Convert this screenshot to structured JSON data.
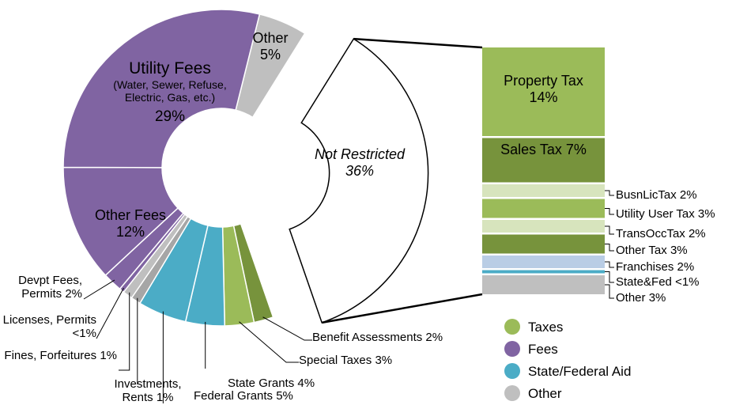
{
  "chart_data": [
    {
      "type": "pie",
      "categories": [
        "Other",
        "Not Restricted",
        "Benefit Assessments",
        "Special Taxes",
        "State Grants",
        "Federal Grants",
        "Investments, Rents",
        "Fines, Forfeitures",
        "Licenses, Permits",
        "Devpt Fees, Permits",
        "Other Fees",
        "Utility Fees"
      ],
      "values": [
        5,
        36,
        2,
        3,
        4,
        5,
        1,
        1,
        0.5,
        2,
        12,
        29
      ],
      "value_labels": [
        "5%",
        "36%",
        "2%",
        "3%",
        "4%",
        "5%",
        "1%",
        "1%",
        "<1%",
        "2%",
        "12%",
        "29%"
      ],
      "colors": [
        "#bfbfbf",
        "#ffffff",
        "#77933c",
        "#9bbb59",
        "#4bacc6",
        "#4bacc6",
        "#a6a6a6",
        "#bfbfbf",
        "#8064a2",
        "#8064a2",
        "#8064a2",
        "#8064a2"
      ],
      "annotation": "(Water, Sewer, Refuse, Electric, Gas, etc.)",
      "legend": [
        {
          "name": "Taxes",
          "color": "#9bbb59"
        },
        {
          "name": "Fees",
          "color": "#8064a2"
        },
        {
          "name": "State/Federal Aid",
          "color": "#4bacc6"
        },
        {
          "name": "Other",
          "color": "#bfbfbf"
        }
      ]
    },
    {
      "type": "bar",
      "categories": [
        "Property Tax",
        "Sales Tax",
        "BusnLicTax",
        "Utility User Tax",
        "TransOccTax",
        "Other Tax",
        "Franchises",
        "State&Fed",
        "Other"
      ],
      "values": [
        14,
        7,
        2,
        3,
        2,
        3,
        2,
        0.5,
        3
      ],
      "value_labels": [
        "14%",
        "7%",
        "2%",
        "3%",
        "2%",
        "3%",
        "2%",
        "<1%",
        "3%"
      ],
      "colors": [
        "#9bbb59",
        "#77933c",
        "#d7e4bd",
        "#9bbb59",
        "#d7e4bd",
        "#77933c",
        "#b9cde5",
        "#4bacc6",
        "#bfbfbf"
      ]
    }
  ]
}
